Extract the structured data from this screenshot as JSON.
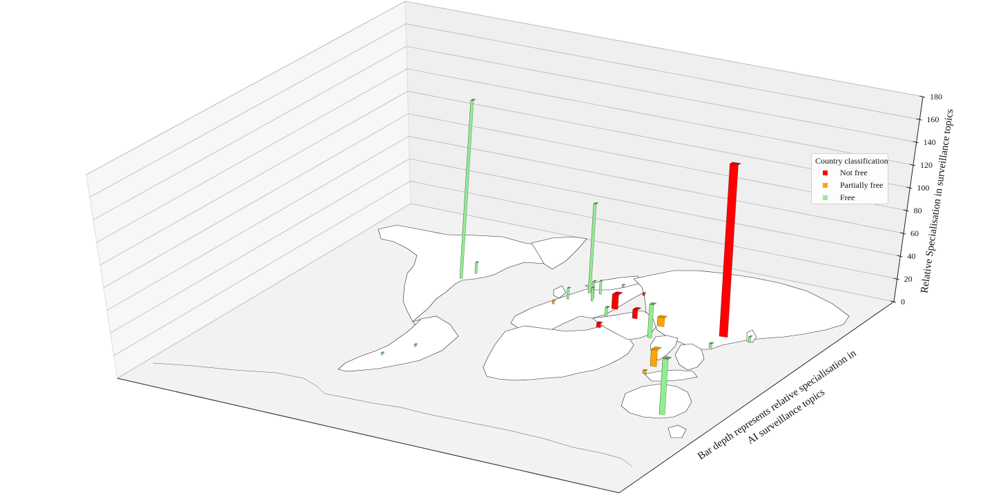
{
  "chart_data": {
    "type": "bar3d",
    "title": "",
    "zlabel": "Relative Specialisation in surveillance topics",
    "depth_label_line1": "Bar depth represents relative specialisation in",
    "depth_label_line2": "AI surveillance topics",
    "zlim": [
      0,
      180
    ],
    "z_ticks": [
      "0",
      "20",
      "40",
      "60",
      "80",
      "100",
      "120",
      "140",
      "160",
      "180"
    ],
    "grid": true,
    "basemap": "world-countries",
    "legend": {
      "title": "Country classification",
      "placement": "right",
      "items": [
        {
          "label": "Not free",
          "color": "#ff0000"
        },
        {
          "label": "Partially free",
          "color": "#ffa500"
        },
        {
          "label": "Free",
          "color": "#90ee90"
        }
      ]
    },
    "bars": [
      {
        "location": "United States",
        "class": "Free",
        "value": 160
      },
      {
        "location": "United States (east)",
        "class": "Free",
        "value": 10
      },
      {
        "location": "Chile",
        "class": "Free",
        "value": 2
      },
      {
        "location": "Brazil",
        "class": "Free",
        "value": 2
      },
      {
        "location": "United Kingdom",
        "class": "Free",
        "value": 80
      },
      {
        "location": "Spain",
        "class": "Free",
        "value": 10
      },
      {
        "location": "Portugal",
        "class": "Partially free",
        "value": 3
      },
      {
        "location": "Germany",
        "class": "Free",
        "value": 15
      },
      {
        "location": "Denmark",
        "class": "Free",
        "value": 12
      },
      {
        "location": "Netherlands",
        "class": "Free",
        "value": 8
      },
      {
        "location": "Italy",
        "class": "Free",
        "value": 12
      },
      {
        "location": "Finland",
        "class": "Free",
        "value": 2
      },
      {
        "location": "Russia (west)",
        "class": "Not free",
        "value": 2
      },
      {
        "location": "Turkey",
        "class": "Not free",
        "value": 13
      },
      {
        "location": "Iran",
        "class": "Not free",
        "value": 8
      },
      {
        "location": "Egypt",
        "class": "Not free",
        "value": 4
      },
      {
        "location": "India",
        "class": "Free",
        "value": 30
      },
      {
        "location": "Pakistan",
        "class": "Partially free",
        "value": 8
      },
      {
        "location": "China",
        "class": "Not free",
        "value": 155
      },
      {
        "location": "Japan",
        "class": "Free",
        "value": 5
      },
      {
        "location": "South Korea",
        "class": "Free",
        "value": 4
      },
      {
        "location": "Malaysia",
        "class": "Partially free",
        "value": 15
      },
      {
        "location": "Singapore",
        "class": "Partially free",
        "value": 3
      },
      {
        "location": "Australia",
        "class": "Free",
        "value": 50
      }
    ]
  }
}
